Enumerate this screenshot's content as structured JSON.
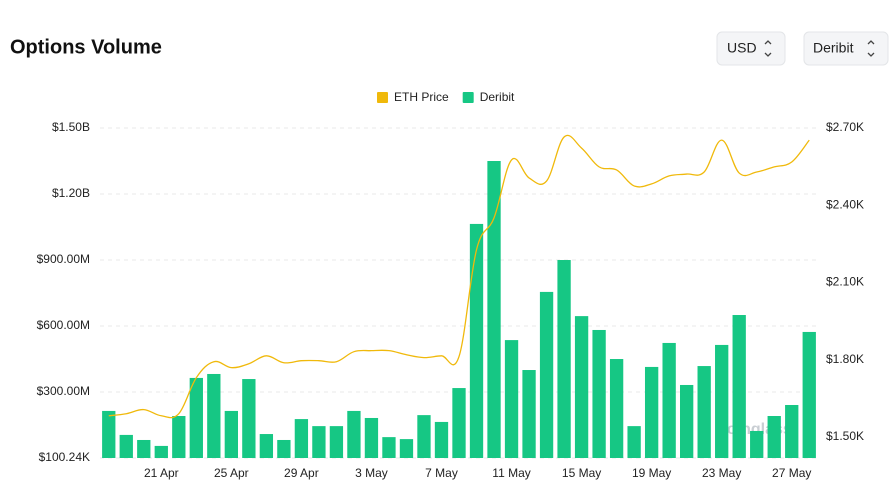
{
  "chart_data": {
    "type": "bar",
    "title": "Options Volume",
    "controls": [
      "USD",
      "Deribit"
    ],
    "watermark": "coinglass",
    "categories": [
      null,
      null,
      null,
      "21 Apr",
      null,
      null,
      null,
      "25 Apr",
      null,
      null,
      null,
      "29 Apr",
      null,
      null,
      null,
      "3 May",
      null,
      null,
      null,
      "7 May",
      null,
      null,
      null,
      "11 May",
      null,
      null,
      null,
      "15 May",
      null,
      null,
      null,
      "19 May",
      null,
      null,
      null,
      "23 May",
      null,
      null,
      null,
      "27 May",
      null
    ],
    "series": [
      {
        "name": "ETH Price",
        "type": "line",
        "axis": "y2",
        "color": "#f0b90b",
        "values": [
          1582,
          1590,
          1606,
          1582,
          1590,
          1730,
          1792,
          1769,
          1784,
          1815,
          1788,
          1796,
          1796,
          1792,
          1831,
          1835,
          1835,
          1819,
          1808,
          1815,
          1812,
          2227,
          2351,
          2576,
          2506,
          2494,
          2665,
          2622,
          2549,
          2537,
          2475,
          2483,
          2514,
          2521,
          2529,
          2653,
          2525,
          2529,
          2549,
          2568,
          2653
        ]
      },
      {
        "name": "Deribit",
        "type": "bar",
        "color": "#16c784",
        "values": [
          214000000,
          105000000,
          82000000,
          55000000,
          191000000,
          364000000,
          382000000,
          214000000,
          359000000,
          109000000,
          82000000,
          177000000,
          145000000,
          145000000,
          214000000,
          182000000,
          95000000,
          86000000,
          195000000,
          164000000,
          318000000,
          1064000000,
          1350000000,
          536000000,
          400000000,
          755000000,
          900000000,
          645000000,
          582000000,
          450000000,
          145000000,
          414000000,
          523000000,
          332000000,
          418000000,
          514000000,
          650000000,
          123000000,
          191000000,
          241000000,
          573000000
        ]
      }
    ],
    "ylim": [
      100240,
      1500000000
    ],
    "yticks": [
      {
        "value": 100240,
        "label": "$100.24K"
      },
      {
        "value": 300000000,
        "label": "$300.00M"
      },
      {
        "value": 600000000,
        "label": "$600.00M"
      },
      {
        "value": 900000000,
        "label": "$900.00M"
      },
      {
        "value": 1200000000,
        "label": "$1.20B"
      },
      {
        "value": 1500000000,
        "label": "$1.50B"
      }
    ],
    "y2lim": [
      1418,
      2700
    ],
    "y2ticks": [
      {
        "value": 1500,
        "label": "$1.50K"
      },
      {
        "value": 1800,
        "label": "$1.80K"
      },
      {
        "value": 2100,
        "label": "$2.10K"
      },
      {
        "value": 2400,
        "label": "$2.40K"
      },
      {
        "value": 2700,
        "label": "$2.70K"
      }
    ],
    "grid": true
  }
}
